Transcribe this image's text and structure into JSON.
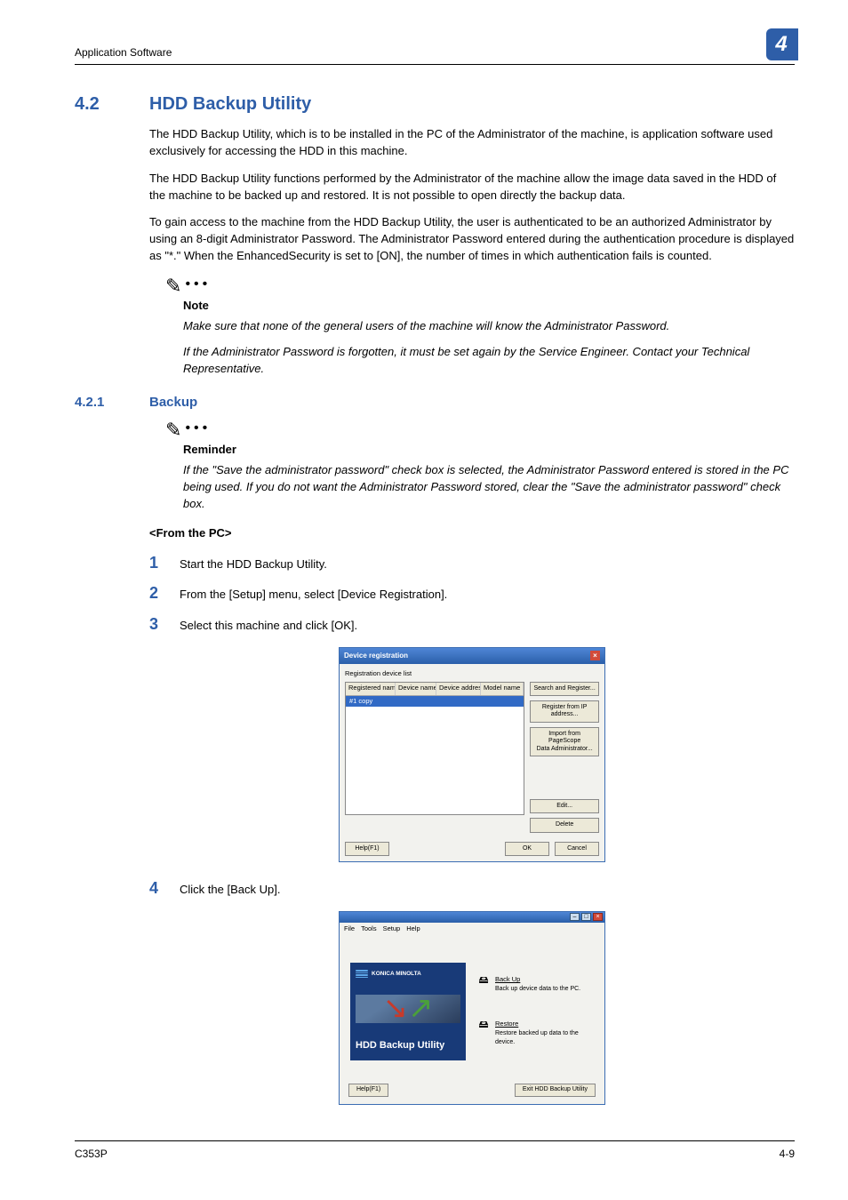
{
  "header": {
    "section_label": "Application Software",
    "chapter_num": "4"
  },
  "section": {
    "number": "4.2",
    "title": "HDD Backup Utility",
    "para1": "The HDD Backup Utility, which is to be installed in the PC of the Administrator of the machine, is application software used exclusively for accessing the HDD in this machine.",
    "para2": "The HDD Backup Utility functions performed by the Administrator of the machine allow the image data saved in the HDD of the machine to be backed up and restored. It is not possible to open directly the backup data.",
    "para3": "To gain access to the machine from the HDD Backup Utility, the user is authenticated to be an authorized Administrator by using an 8-digit Administrator Password. The Administrator Password entered during the authentication procedure is displayed as \"*.\" When the EnhancedSecurity is set to [ON], the number of times in which authentication fails is counted."
  },
  "note": {
    "label": "Note",
    "line1": "Make sure that none of the general users of the machine will know the Administrator Password.",
    "line2": "If the Administrator Password is forgotten, it must be set again by the Service Engineer. Contact your Technical Representative."
  },
  "subsection": {
    "number": "4.2.1",
    "title": "Backup"
  },
  "reminder": {
    "label": "Reminder",
    "text": "If the \"Save the administrator password\" check box is selected, the Administrator Password entered is stored in the PC being used. If you do not want the Administrator Password stored, clear the \"Save the administrator password\" check box."
  },
  "from_pc": "<From the PC>",
  "steps": {
    "s1": {
      "n": "1",
      "t": "Start the HDD Backup Utility."
    },
    "s2": {
      "n": "2",
      "t": "From the [Setup] menu, select [Device Registration]."
    },
    "s3": {
      "n": "3",
      "t": "Select this machine and click [OK]."
    },
    "s4": {
      "n": "4",
      "t": "Click the [Back Up]."
    }
  },
  "dlg1": {
    "title": "Device registration",
    "list_label": "Registration device list",
    "cols": {
      "c1": "Registered name",
      "c2": "Device name",
      "c3": "Device address",
      "c4": "Model name"
    },
    "col_widths": {
      "c1": "56px",
      "c2": "46px",
      "c3": "50px",
      "c4": "auto"
    },
    "selected": "#1 copy",
    "btn_search": "Search and Register...",
    "btn_ip": "Register from IP address...",
    "btn_import": "Import from\nPageScope\nData Administrator...",
    "btn_edit": "Edit...",
    "btn_delete": "Delete",
    "btn_help": "Help(F1)",
    "btn_ok": "OK",
    "btn_cancel": "Cancel",
    "colors": {
      "title_bg_top": "#4f86d6",
      "title_bg_bot": "#2a5fa9",
      "sel_bg": "#316ac5"
    }
  },
  "dlg2": {
    "menu": {
      "m1": "File",
      "m2": "Tools",
      "m3": "Setup",
      "m4": "Help"
    },
    "brand": "KONICA MINOLTA",
    "util_name": "HDD Backup Utility",
    "backup": {
      "title": "Back Up",
      "desc": "Back up device data to the PC."
    },
    "restore": {
      "title": "Restore",
      "desc": "Restore backed up data to the device."
    },
    "btn_help": "Help(F1)",
    "btn_exit": "Exit HDD Backup Utility",
    "colors": {
      "panel_bg": "#183a78",
      "arrow_red": "#c83a2a",
      "arrow_green": "#4aa03a"
    }
  },
  "footer": {
    "left": "C353P",
    "right": "4-9"
  }
}
